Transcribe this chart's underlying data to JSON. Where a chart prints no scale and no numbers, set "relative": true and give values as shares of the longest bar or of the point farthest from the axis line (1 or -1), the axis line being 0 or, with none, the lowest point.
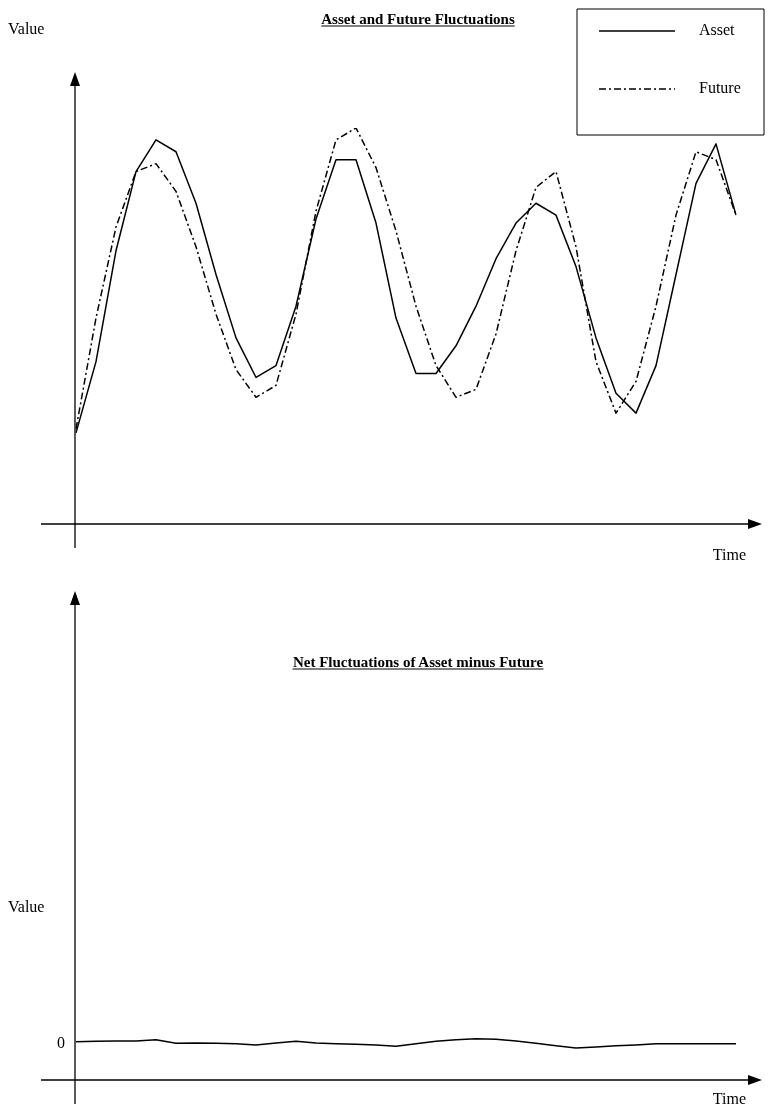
{
  "chart_data": [
    {
      "type": "line",
      "title": "Asset and Future Fluctuations",
      "xlabel": "Time",
      "ylabel": "Value",
      "relative": true,
      "legend": "top right",
      "marker": "none",
      "categories": [
        null,
        null,
        null,
        null,
        null,
        null,
        null,
        null,
        null,
        null,
        null,
        null,
        null,
        null,
        null,
        null,
        null,
        null,
        null,
        null,
        null,
        null,
        null,
        null,
        null,
        null,
        null,
        null,
        null,
        null,
        null,
        null,
        null,
        null
      ],
      "series": [
        {
          "name": "Asset",
          "color": "#000000",
          "line_style": "solid",
          "values": [
            0.23,
            0.41,
            0.69,
            0.89,
            0.97,
            0.94,
            0.81,
            0.63,
            0.47,
            0.37,
            0.4,
            0.55,
            0.77,
            0.92,
            0.92,
            0.76,
            0.52,
            0.38,
            0.38,
            0.45,
            0.55,
            0.67,
            0.76,
            0.81,
            0.78,
            0.65,
            0.47,
            0.33,
            0.28,
            0.4,
            0.63,
            0.86,
            0.96,
            0.78
          ]
        },
        {
          "name": "Future",
          "color": "#000000",
          "line_style": "dashed",
          "values": [
            0.24,
            0.52,
            0.75,
            0.89,
            0.91,
            0.84,
            0.7,
            0.53,
            0.39,
            0.32,
            0.35,
            0.53,
            0.79,
            0.97,
            1.0,
            0.9,
            0.74,
            0.55,
            0.4,
            0.32,
            0.34,
            0.48,
            0.69,
            0.85,
            0.89,
            0.7,
            0.41,
            0.28,
            0.36,
            0.55,
            0.78,
            0.94,
            0.92,
            0.78
          ]
        }
      ]
    },
    {
      "type": "line",
      "title": "Net Fluctuations of Asset minus Future",
      "xlabel": "Time",
      "ylabel": "Value",
      "relative": true,
      "marker": "none",
      "annotations": [
        "0"
      ],
      "categories": [
        null,
        null,
        null,
        null,
        null,
        null,
        null,
        null,
        null,
        null,
        null,
        null,
        null,
        null,
        null,
        null,
        null,
        null,
        null,
        null,
        null,
        null,
        null,
        null,
        null,
        null,
        null,
        null,
        null,
        null,
        null,
        null,
        null,
        null
      ],
      "series": [
        {
          "color": "#000000",
          "values": [
            0.93,
            0.94,
            0.95,
            0.95,
            0.98,
            0.89,
            0.9,
            0.89,
            0.88,
            0.85,
            0.9,
            0.94,
            0.9,
            0.88,
            0.87,
            0.85,
            0.82,
            0.88,
            0.94,
            0.98,
            1.0,
            0.99,
            0.95,
            0.89,
            0.83,
            0.78,
            0.8,
            0.83,
            0.85,
            0.88,
            0.88,
            0.88,
            0.88,
            0.88
          ]
        }
      ]
    }
  ]
}
